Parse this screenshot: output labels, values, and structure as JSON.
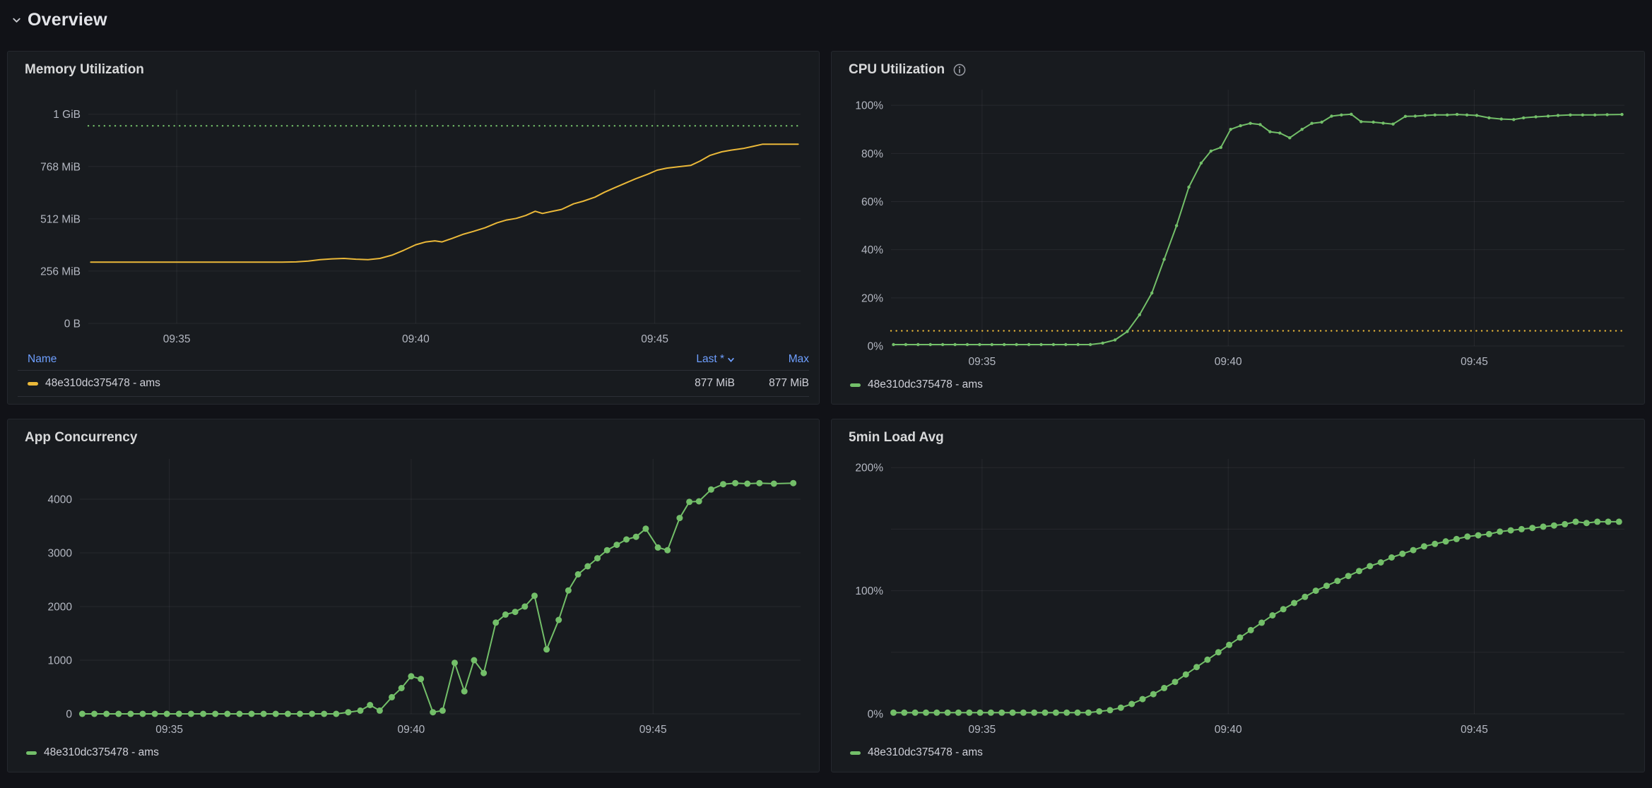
{
  "header": {
    "title": "Overview"
  },
  "colors": {
    "background": "#111217",
    "panel_background": "#181b1f",
    "panel_border": "#25282e",
    "title_text": "#d8d9da",
    "tick_text": "#b4b8c2",
    "legend_link_blue": "#6e9fff",
    "series_yellow": "#eab839",
    "series_green": "#73bf69"
  },
  "panels": [
    {
      "title": "Memory Utilization",
      "legend": {
        "type": "table",
        "headers": [
          "Name",
          "Last *",
          "Max"
        ],
        "rows": [
          {
            "name": "48e310dc375478 - ams",
            "last": "877 MiB",
            "max": "877 MiB",
            "color": "#eab839"
          }
        ]
      }
    },
    {
      "title": "CPU Utilization",
      "info_icon": "info-circle",
      "legend": {
        "type": "list",
        "label": "48e310dc375478 - ams",
        "color": "#73bf69"
      }
    },
    {
      "title": "App Concurrency",
      "legend": {
        "type": "list",
        "label": "48e310dc375478 - ams",
        "color": "#73bf69"
      }
    },
    {
      "title": "5min Load Avg",
      "legend": {
        "type": "list",
        "label": "48e310dc375478 - ams",
        "color": "#73bf69"
      }
    }
  ],
  "chart_data": [
    {
      "id": "memory",
      "type": "line",
      "title": "Memory Utilization",
      "series_name": "48e310dc375478 - ams",
      "color": "#eab839",
      "point_radius": 0,
      "margins": {
        "l": 102,
        "r": 14,
        "t": 10,
        "b": 36
      },
      "x_domain": [
        33.15,
        48.05
      ],
      "x_ticks": [
        {
          "v": 35,
          "label": "09:35"
        },
        {
          "v": 40,
          "label": "09:40"
        },
        {
          "v": 45,
          "label": "09:45"
        }
      ],
      "y_domain": [
        0,
        1144
      ],
      "y_unit": "MiB",
      "y_grid": [
        0,
        256,
        512,
        768,
        1024
      ],
      "y_ticks": [
        {
          "v": 0,
          "label": "0 B"
        },
        {
          "v": 256,
          "label": "256 MiB"
        },
        {
          "v": 512,
          "label": "512 MiB"
        },
        {
          "v": 768,
          "label": "768 MiB"
        },
        {
          "v": 1024,
          "label": "1 GiB"
        }
      ],
      "threshold": {
        "v": 967,
        "color": "#73bf69",
        "style": "dotted"
      },
      "points": [
        [
          33.2,
          300
        ],
        [
          33.7,
          300
        ],
        [
          34.2,
          300
        ],
        [
          34.7,
          300
        ],
        [
          35.2,
          300
        ],
        [
          35.7,
          300
        ],
        [
          36.2,
          300
        ],
        [
          36.7,
          300
        ],
        [
          37.2,
          300
        ],
        [
          37.5,
          301
        ],
        [
          37.75,
          305
        ],
        [
          38.0,
          312
        ],
        [
          38.25,
          316
        ],
        [
          38.5,
          318
        ],
        [
          38.75,
          314
        ],
        [
          39.0,
          312
        ],
        [
          39.25,
          318
        ],
        [
          39.5,
          334
        ],
        [
          39.75,
          358
        ],
        [
          40.0,
          385
        ],
        [
          40.2,
          398
        ],
        [
          40.4,
          404
        ],
        [
          40.55,
          399
        ],
        [
          40.75,
          415
        ],
        [
          41.0,
          437
        ],
        [
          41.2,
          450
        ],
        [
          41.45,
          468
        ],
        [
          41.7,
          492
        ],
        [
          41.9,
          506
        ],
        [
          42.1,
          514
        ],
        [
          42.3,
          528
        ],
        [
          42.5,
          549
        ],
        [
          42.65,
          538
        ],
        [
          42.85,
          548
        ],
        [
          43.05,
          558
        ],
        [
          43.3,
          585
        ],
        [
          43.5,
          598
        ],
        [
          43.75,
          618
        ],
        [
          43.95,
          642
        ],
        [
          44.15,
          663
        ],
        [
          44.4,
          688
        ],
        [
          44.6,
          708
        ],
        [
          44.85,
          730
        ],
        [
          45.05,
          750
        ],
        [
          45.25,
          760
        ],
        [
          45.5,
          767
        ],
        [
          45.75,
          773
        ],
        [
          45.95,
          795
        ],
        [
          46.15,
          822
        ],
        [
          46.4,
          840
        ],
        [
          46.6,
          848
        ],
        [
          46.85,
          856
        ],
        [
          47.05,
          866
        ],
        [
          47.25,
          877
        ],
        [
          47.6,
          877
        ],
        [
          48.0,
          877
        ]
      ]
    },
    {
      "id": "cpu",
      "type": "line",
      "title": "CPU Utilization",
      "series_name": "48e310dc375478 - ams",
      "color": "#73bf69",
      "point_radius": 2.2,
      "margins": {
        "l": 72,
        "r": 16,
        "t": 10,
        "b": 36
      },
      "x_domain": [
        33.15,
        48.05
      ],
      "x_ticks": [
        {
          "v": 35,
          "label": "09:35"
        },
        {
          "v": 40,
          "label": "09:40"
        },
        {
          "v": 45,
          "label": "09:45"
        }
      ],
      "y_domain": [
        0,
        106.5
      ],
      "y_unit": "%",
      "y_grid": [
        0,
        20,
        40,
        60,
        80,
        100
      ],
      "y_ticks": [
        {
          "v": 0,
          "label": "0%"
        },
        {
          "v": 20,
          "label": "20%"
        },
        {
          "v": 40,
          "label": "40%"
        },
        {
          "v": 60,
          "label": "60%"
        },
        {
          "v": 80,
          "label": "80%"
        },
        {
          "v": 100,
          "label": "100%"
        }
      ],
      "threshold": {
        "v": 6.3,
        "color": "#eab839",
        "style": "dotted"
      },
      "points": [
        [
          33.2,
          0.6
        ],
        [
          33.45,
          0.6
        ],
        [
          33.7,
          0.6
        ],
        [
          33.95,
          0.6
        ],
        [
          34.2,
          0.6
        ],
        [
          34.45,
          0.6
        ],
        [
          34.7,
          0.6
        ],
        [
          34.95,
          0.6
        ],
        [
          35.2,
          0.6
        ],
        [
          35.45,
          0.6
        ],
        [
          35.7,
          0.6
        ],
        [
          35.95,
          0.6
        ],
        [
          36.2,
          0.6
        ],
        [
          36.45,
          0.6
        ],
        [
          36.7,
          0.6
        ],
        [
          36.95,
          0.6
        ],
        [
          37.2,
          0.6
        ],
        [
          37.45,
          1.2
        ],
        [
          37.7,
          2.5
        ],
        [
          37.95,
          6
        ],
        [
          38.2,
          13
        ],
        [
          38.45,
          22
        ],
        [
          38.7,
          36
        ],
        [
          38.95,
          50
        ],
        [
          39.2,
          66
        ],
        [
          39.45,
          76
        ],
        [
          39.65,
          81
        ],
        [
          39.85,
          82.5
        ],
        [
          40.05,
          90
        ],
        [
          40.25,
          91.5
        ],
        [
          40.45,
          92.5
        ],
        [
          40.65,
          92
        ],
        [
          40.85,
          89
        ],
        [
          41.05,
          88.5
        ],
        [
          41.25,
          86.5
        ],
        [
          41.5,
          90
        ],
        [
          41.7,
          92.5
        ],
        [
          41.9,
          93
        ],
        [
          42.1,
          95.5
        ],
        [
          42.3,
          96
        ],
        [
          42.5,
          96.3
        ],
        [
          42.7,
          93.2
        ],
        [
          42.95,
          93
        ],
        [
          43.15,
          92.6
        ],
        [
          43.35,
          92.2
        ],
        [
          43.6,
          95.4
        ],
        [
          43.8,
          95.5
        ],
        [
          44.0,
          95.8
        ],
        [
          44.2,
          96
        ],
        [
          44.45,
          96
        ],
        [
          44.65,
          96.2
        ],
        [
          44.85,
          96
        ],
        [
          45.05,
          95.8
        ],
        [
          45.3,
          94.8
        ],
        [
          45.55,
          94.3
        ],
        [
          45.8,
          94.1
        ],
        [
          46.0,
          94.8
        ],
        [
          46.25,
          95.2
        ],
        [
          46.5,
          95.5
        ],
        [
          46.7,
          95.8
        ],
        [
          46.95,
          96
        ],
        [
          47.2,
          96
        ],
        [
          47.45,
          96
        ],
        [
          47.7,
          96.1
        ],
        [
          48.0,
          96.2
        ]
      ]
    },
    {
      "id": "concurrency",
      "type": "line",
      "title": "App Concurrency",
      "series_name": "48e310dc375478 - ams",
      "color": "#73bf69",
      "point_radius": 4.5,
      "margins": {
        "l": 90,
        "r": 14,
        "t": 12,
        "b": 36
      },
      "x_domain": [
        33.15,
        48.05
      ],
      "x_ticks": [
        {
          "v": 35,
          "label": "09:35"
        },
        {
          "v": 40,
          "label": "09:40"
        },
        {
          "v": 45,
          "label": "09:45"
        }
      ],
      "y_domain": [
        0,
        4750
      ],
      "y_unit": "count",
      "y_grid": [
        0,
        1000,
        2000,
        3000,
        4000
      ],
      "y_ticks": [
        {
          "v": 0,
          "label": "0"
        },
        {
          "v": 1000,
          "label": "1000"
        },
        {
          "v": 2000,
          "label": "2000"
        },
        {
          "v": 3000,
          "label": "3000"
        },
        {
          "v": 4000,
          "label": "4000"
        }
      ],
      "points": [
        [
          33.2,
          0
        ],
        [
          33.45,
          0
        ],
        [
          33.7,
          0
        ],
        [
          33.95,
          0
        ],
        [
          34.2,
          0
        ],
        [
          34.45,
          0
        ],
        [
          34.7,
          0
        ],
        [
          34.95,
          0
        ],
        [
          35.2,
          0
        ],
        [
          35.45,
          0
        ],
        [
          35.7,
          0
        ],
        [
          35.95,
          0
        ],
        [
          36.2,
          0
        ],
        [
          36.45,
          0
        ],
        [
          36.7,
          0
        ],
        [
          36.95,
          0
        ],
        [
          37.2,
          0
        ],
        [
          37.45,
          0
        ],
        [
          37.7,
          0
        ],
        [
          37.95,
          0
        ],
        [
          38.2,
          0
        ],
        [
          38.45,
          0
        ],
        [
          38.7,
          30
        ],
        [
          38.95,
          60
        ],
        [
          39.15,
          165
        ],
        [
          39.35,
          60
        ],
        [
          39.6,
          310
        ],
        [
          39.8,
          480
        ],
        [
          40.0,
          700
        ],
        [
          40.2,
          650
        ],
        [
          40.45,
          30
        ],
        [
          40.65,
          60
        ],
        [
          40.9,
          950
        ],
        [
          41.1,
          420
        ],
        [
          41.3,
          1000
        ],
        [
          41.5,
          760
        ],
        [
          41.75,
          1700
        ],
        [
          41.95,
          1850
        ],
        [
          42.15,
          1900
        ],
        [
          42.35,
          2000
        ],
        [
          42.55,
          2200
        ],
        [
          42.8,
          1200
        ],
        [
          43.05,
          1750
        ],
        [
          43.25,
          2300
        ],
        [
          43.45,
          2600
        ],
        [
          43.65,
          2750
        ],
        [
          43.85,
          2900
        ],
        [
          44.05,
          3050
        ],
        [
          44.25,
          3150
        ],
        [
          44.45,
          3250
        ],
        [
          44.65,
          3300
        ],
        [
          44.85,
          3450
        ],
        [
          45.1,
          3100
        ],
        [
          45.3,
          3050
        ],
        [
          45.55,
          3650
        ],
        [
          45.75,
          3950
        ],
        [
          45.95,
          3960
        ],
        [
          46.2,
          4180
        ],
        [
          46.45,
          4280
        ],
        [
          46.7,
          4300
        ],
        [
          46.95,
          4290
        ],
        [
          47.2,
          4300
        ],
        [
          47.5,
          4290
        ],
        [
          47.9,
          4300
        ]
      ]
    },
    {
      "id": "load",
      "type": "line",
      "title": "5min Load Avg",
      "series_name": "48e310dc375478 - ams",
      "color": "#73bf69",
      "point_radius": 4.5,
      "margins": {
        "l": 72,
        "r": 16,
        "t": 12,
        "b": 36
      },
      "x_domain": [
        33.15,
        48.05
      ],
      "x_ticks": [
        {
          "v": 35,
          "label": "09:35"
        },
        {
          "v": 40,
          "label": "09:40"
        },
        {
          "v": 45,
          "label": "09:45"
        }
      ],
      "y_domain": [
        0,
        207
      ],
      "y_unit": "%",
      "y_grid": [
        0,
        50,
        100,
        150,
        200
      ],
      "y_ticks": [
        {
          "v": 0,
          "label": "0%"
        },
        {
          "v": 100,
          "label": "100%"
        },
        {
          "v": 200,
          "label": "200%"
        }
      ],
      "points": [
        [
          33.2,
          1
        ],
        [
          33.42,
          1
        ],
        [
          33.64,
          1
        ],
        [
          33.86,
          1
        ],
        [
          34.08,
          1
        ],
        [
          34.3,
          1
        ],
        [
          34.52,
          1
        ],
        [
          34.74,
          1
        ],
        [
          34.96,
          1
        ],
        [
          35.18,
          1
        ],
        [
          35.4,
          1
        ],
        [
          35.62,
          1
        ],
        [
          35.84,
          1
        ],
        [
          36.06,
          1
        ],
        [
          36.28,
          1
        ],
        [
          36.5,
          1
        ],
        [
          36.72,
          1
        ],
        [
          36.94,
          1
        ],
        [
          37.16,
          1
        ],
        [
          37.38,
          2
        ],
        [
          37.6,
          3
        ],
        [
          37.82,
          5
        ],
        [
          38.04,
          8
        ],
        [
          38.26,
          12
        ],
        [
          38.48,
          16
        ],
        [
          38.7,
          21
        ],
        [
          38.92,
          26
        ],
        [
          39.14,
          32
        ],
        [
          39.36,
          38
        ],
        [
          39.58,
          44
        ],
        [
          39.8,
          50
        ],
        [
          40.02,
          56
        ],
        [
          40.24,
          62
        ],
        [
          40.46,
          68
        ],
        [
          40.68,
          74
        ],
        [
          40.9,
          80
        ],
        [
          41.12,
          85
        ],
        [
          41.34,
          90
        ],
        [
          41.56,
          95
        ],
        [
          41.78,
          100
        ],
        [
          42.0,
          104
        ],
        [
          42.22,
          108
        ],
        [
          42.44,
          112
        ],
        [
          42.66,
          116
        ],
        [
          42.88,
          120
        ],
        [
          43.1,
          123
        ],
        [
          43.32,
          127
        ],
        [
          43.54,
          130
        ],
        [
          43.76,
          133
        ],
        [
          43.98,
          136
        ],
        [
          44.2,
          138
        ],
        [
          44.42,
          140
        ],
        [
          44.64,
          142
        ],
        [
          44.86,
          144
        ],
        [
          45.08,
          145
        ],
        [
          45.3,
          146
        ],
        [
          45.52,
          148
        ],
        [
          45.74,
          149
        ],
        [
          45.96,
          150
        ],
        [
          46.18,
          151
        ],
        [
          46.4,
          152
        ],
        [
          46.62,
          153
        ],
        [
          46.84,
          154
        ],
        [
          47.06,
          156
        ],
        [
          47.28,
          155
        ],
        [
          47.5,
          156
        ],
        [
          47.72,
          156
        ],
        [
          47.94,
          156
        ]
      ]
    }
  ]
}
